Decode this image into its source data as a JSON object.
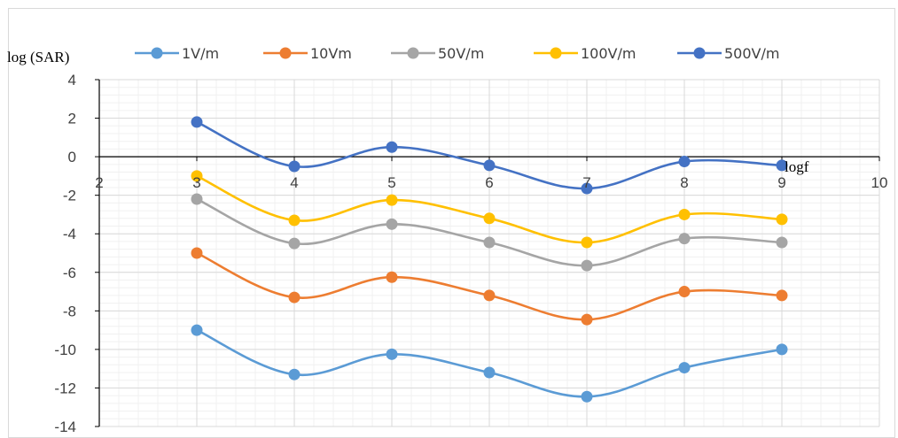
{
  "chart_data": {
    "type": "line",
    "smooth": true,
    "x": [
      3,
      4,
      5,
      6,
      7,
      8,
      9
    ],
    "series": [
      {
        "name": "1V/m",
        "color": "#5B9BD5",
        "values": [
          -9.0,
          -11.3,
          -10.25,
          -11.2,
          -12.45,
          -10.95,
          -10.0
        ]
      },
      {
        "name": "10Vm",
        "color": "#ED7D31",
        "values": [
          -5.0,
          -7.3,
          -6.25,
          -7.2,
          -8.45,
          -7.0,
          -7.2
        ]
      },
      {
        "name": "50V/m",
        "color": "#A5A5A5",
        "values": [
          -2.2,
          -4.5,
          -3.5,
          -4.45,
          -5.65,
          -4.25,
          -4.45
        ]
      },
      {
        "name": "100V/m",
        "color": "#FFC000",
        "values": [
          -1.0,
          -3.3,
          -2.25,
          -3.2,
          -4.45,
          -3.0,
          -3.25
        ]
      },
      {
        "name": "500V/m",
        "color": "#4472C4",
        "values": [
          1.8,
          -0.5,
          0.5,
          -0.45,
          -1.65,
          -0.25,
          -0.45
        ]
      }
    ],
    "xlim": [
      2,
      10
    ],
    "ylim": [
      -14,
      4
    ],
    "x_ticks": [
      "2",
      "3",
      "4",
      "5",
      "6",
      "7",
      "8",
      "9",
      "10"
    ],
    "y_ticks": [
      "4",
      "2",
      "0",
      "-2",
      "-4",
      "-6",
      "-8",
      "-10",
      "-12",
      "-14"
    ],
    "xlabel": "logf",
    "ylabel": "log (SAR)",
    "title": "",
    "grid": true,
    "legend_position": "top"
  }
}
